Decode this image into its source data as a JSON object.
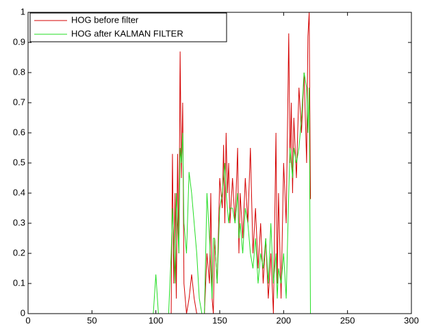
{
  "chart_data": {
    "type": "line",
    "x": [
      0,
      98,
      100,
      102,
      104,
      110,
      112,
      113,
      114,
      115,
      116,
      117,
      118,
      119,
      120,
      121,
      122,
      124,
      126,
      128,
      130,
      132,
      134,
      136,
      138,
      140,
      142,
      143,
      144,
      145,
      146,
      148,
      150,
      152,
      153,
      154,
      155,
      156,
      157,
      158,
      160,
      162,
      164,
      165,
      166,
      168,
      170,
      172,
      174,
      176,
      178,
      180,
      182,
      184,
      186,
      188,
      190,
      192,
      194,
      195,
      196,
      198,
      200,
      202,
      204,
      205,
      206,
      207,
      208,
      210,
      212,
      214,
      216,
      218,
      219,
      220,
      221
    ],
    "series": [
      {
        "name": "HOG before filter",
        "color": "#d40000",
        "values": [
          0,
          0,
          0,
          0,
          0,
          0,
          0,
          0.53,
          0.1,
          0.4,
          0.05,
          0.53,
          0.2,
          0.87,
          0.45,
          0.7,
          0.1,
          0,
          0.05,
          0.13,
          0.05,
          0,
          0,
          0,
          0,
          0.2,
          0.1,
          0.4,
          0.05,
          0,
          0.25,
          0.1,
          0.45,
          0.35,
          0.56,
          0.3,
          0.6,
          0.4,
          0.5,
          0.3,
          0.45,
          0.3,
          0.55,
          0.2,
          0.4,
          0.25,
          0.45,
          0.3,
          0.55,
          0.2,
          0.35,
          0.15,
          0.3,
          0.1,
          0.25,
          0.05,
          0.2,
          0,
          0.6,
          0.1,
          0.4,
          0.05,
          0.5,
          0.3,
          0.93,
          0.5,
          0.7,
          0.4,
          0.65,
          0.45,
          0.75,
          0.6,
          0.8,
          0.5,
          0.92,
          1.0,
          0.38
        ]
      },
      {
        "name": "HOG after KALMAN FILTER",
        "color": "#22dd22",
        "values": [
          0,
          0,
          0.13,
          0,
          0,
          0,
          0.2,
          0.35,
          0.25,
          0.1,
          0.4,
          0.3,
          0.2,
          0.55,
          0.5,
          0.6,
          0.3,
          0.2,
          0.47,
          0.4,
          0.3,
          0.2,
          0.05,
          0,
          0,
          0.4,
          0.25,
          0.15,
          0.05,
          0.25,
          0.25,
          0.1,
          0.35,
          0.4,
          0.45,
          0.5,
          0.4,
          0.35,
          0.3,
          0.35,
          0.35,
          0.3,
          0.4,
          0.25,
          0.3,
          0.2,
          0.35,
          0.3,
          0.2,
          0.15,
          0.25,
          0.1,
          0.2,
          0.15,
          0.25,
          0.1,
          0.3,
          0.1,
          0.2,
          0.05,
          0.15,
          0.1,
          0.2,
          0.05,
          0.4,
          0.55,
          0.5,
          0.45,
          0.55,
          0.5,
          0.55,
          0.65,
          0.8,
          0.75,
          0.6,
          0.75,
          0
        ]
      }
    ],
    "xlim": [
      0,
      300
    ],
    "xticks": [
      0,
      50,
      100,
      150,
      200,
      250,
      300
    ],
    "ylim": [
      0,
      1
    ],
    "yticks": [
      0,
      0.1,
      0.2,
      0.3,
      0.4,
      0.5,
      0.6,
      0.7,
      0.8,
      0.9,
      1
    ],
    "legend": "upper-left"
  }
}
